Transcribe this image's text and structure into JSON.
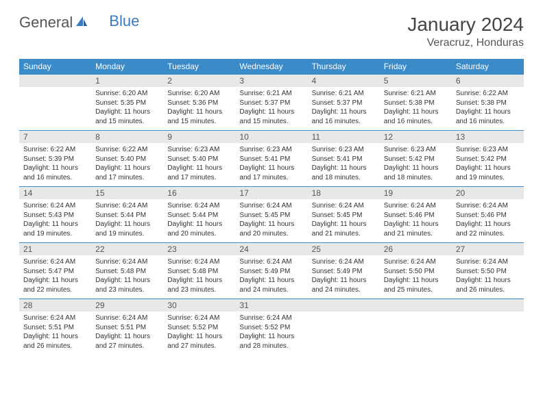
{
  "logo": {
    "part1": "General",
    "part2": "Blue"
  },
  "title": "January 2024",
  "location": "Veracruz, Honduras",
  "colors": {
    "header_bg": "#3b8bc9",
    "header_text": "#ffffff",
    "daynum_bg": "#e8e8e8",
    "daynum_text": "#555555",
    "border": "#3b8bc9",
    "body_text": "#333333",
    "logo_gray": "#555555",
    "logo_blue": "#3b7bbf"
  },
  "weekdays": [
    "Sunday",
    "Monday",
    "Tuesday",
    "Wednesday",
    "Thursday",
    "Friday",
    "Saturday"
  ],
  "weeks": [
    [
      {
        "day": "",
        "lines": []
      },
      {
        "day": "1",
        "lines": [
          "Sunrise: 6:20 AM",
          "Sunset: 5:35 PM",
          "Daylight: 11 hours and 15 minutes."
        ]
      },
      {
        "day": "2",
        "lines": [
          "Sunrise: 6:20 AM",
          "Sunset: 5:36 PM",
          "Daylight: 11 hours and 15 minutes."
        ]
      },
      {
        "day": "3",
        "lines": [
          "Sunrise: 6:21 AM",
          "Sunset: 5:37 PM",
          "Daylight: 11 hours and 15 minutes."
        ]
      },
      {
        "day": "4",
        "lines": [
          "Sunrise: 6:21 AM",
          "Sunset: 5:37 PM",
          "Daylight: 11 hours and 16 minutes."
        ]
      },
      {
        "day": "5",
        "lines": [
          "Sunrise: 6:21 AM",
          "Sunset: 5:38 PM",
          "Daylight: 11 hours and 16 minutes."
        ]
      },
      {
        "day": "6",
        "lines": [
          "Sunrise: 6:22 AM",
          "Sunset: 5:38 PM",
          "Daylight: 11 hours and 16 minutes."
        ]
      }
    ],
    [
      {
        "day": "7",
        "lines": [
          "Sunrise: 6:22 AM",
          "Sunset: 5:39 PM",
          "Daylight: 11 hours and 16 minutes."
        ]
      },
      {
        "day": "8",
        "lines": [
          "Sunrise: 6:22 AM",
          "Sunset: 5:40 PM",
          "Daylight: 11 hours and 17 minutes."
        ]
      },
      {
        "day": "9",
        "lines": [
          "Sunrise: 6:23 AM",
          "Sunset: 5:40 PM",
          "Daylight: 11 hours and 17 minutes."
        ]
      },
      {
        "day": "10",
        "lines": [
          "Sunrise: 6:23 AM",
          "Sunset: 5:41 PM",
          "Daylight: 11 hours and 17 minutes."
        ]
      },
      {
        "day": "11",
        "lines": [
          "Sunrise: 6:23 AM",
          "Sunset: 5:41 PM",
          "Daylight: 11 hours and 18 minutes."
        ]
      },
      {
        "day": "12",
        "lines": [
          "Sunrise: 6:23 AM",
          "Sunset: 5:42 PM",
          "Daylight: 11 hours and 18 minutes."
        ]
      },
      {
        "day": "13",
        "lines": [
          "Sunrise: 6:23 AM",
          "Sunset: 5:42 PM",
          "Daylight: 11 hours and 19 minutes."
        ]
      }
    ],
    [
      {
        "day": "14",
        "lines": [
          "Sunrise: 6:24 AM",
          "Sunset: 5:43 PM",
          "Daylight: 11 hours and 19 minutes."
        ]
      },
      {
        "day": "15",
        "lines": [
          "Sunrise: 6:24 AM",
          "Sunset: 5:44 PM",
          "Daylight: 11 hours and 19 minutes."
        ]
      },
      {
        "day": "16",
        "lines": [
          "Sunrise: 6:24 AM",
          "Sunset: 5:44 PM",
          "Daylight: 11 hours and 20 minutes."
        ]
      },
      {
        "day": "17",
        "lines": [
          "Sunrise: 6:24 AM",
          "Sunset: 5:45 PM",
          "Daylight: 11 hours and 20 minutes."
        ]
      },
      {
        "day": "18",
        "lines": [
          "Sunrise: 6:24 AM",
          "Sunset: 5:45 PM",
          "Daylight: 11 hours and 21 minutes."
        ]
      },
      {
        "day": "19",
        "lines": [
          "Sunrise: 6:24 AM",
          "Sunset: 5:46 PM",
          "Daylight: 11 hours and 21 minutes."
        ]
      },
      {
        "day": "20",
        "lines": [
          "Sunrise: 6:24 AM",
          "Sunset: 5:46 PM",
          "Daylight: 11 hours and 22 minutes."
        ]
      }
    ],
    [
      {
        "day": "21",
        "lines": [
          "Sunrise: 6:24 AM",
          "Sunset: 5:47 PM",
          "Daylight: 11 hours and 22 minutes."
        ]
      },
      {
        "day": "22",
        "lines": [
          "Sunrise: 6:24 AM",
          "Sunset: 5:48 PM",
          "Daylight: 11 hours and 23 minutes."
        ]
      },
      {
        "day": "23",
        "lines": [
          "Sunrise: 6:24 AM",
          "Sunset: 5:48 PM",
          "Daylight: 11 hours and 23 minutes."
        ]
      },
      {
        "day": "24",
        "lines": [
          "Sunrise: 6:24 AM",
          "Sunset: 5:49 PM",
          "Daylight: 11 hours and 24 minutes."
        ]
      },
      {
        "day": "25",
        "lines": [
          "Sunrise: 6:24 AM",
          "Sunset: 5:49 PM",
          "Daylight: 11 hours and 24 minutes."
        ]
      },
      {
        "day": "26",
        "lines": [
          "Sunrise: 6:24 AM",
          "Sunset: 5:50 PM",
          "Daylight: 11 hours and 25 minutes."
        ]
      },
      {
        "day": "27",
        "lines": [
          "Sunrise: 6:24 AM",
          "Sunset: 5:50 PM",
          "Daylight: 11 hours and 26 minutes."
        ]
      }
    ],
    [
      {
        "day": "28",
        "lines": [
          "Sunrise: 6:24 AM",
          "Sunset: 5:51 PM",
          "Daylight: 11 hours and 26 minutes."
        ]
      },
      {
        "day": "29",
        "lines": [
          "Sunrise: 6:24 AM",
          "Sunset: 5:51 PM",
          "Daylight: 11 hours and 27 minutes."
        ]
      },
      {
        "day": "30",
        "lines": [
          "Sunrise: 6:24 AM",
          "Sunset: 5:52 PM",
          "Daylight: 11 hours and 27 minutes."
        ]
      },
      {
        "day": "31",
        "lines": [
          "Sunrise: 6:24 AM",
          "Sunset: 5:52 PM",
          "Daylight: 11 hours and 28 minutes."
        ]
      },
      {
        "day": "",
        "lines": []
      },
      {
        "day": "",
        "lines": []
      },
      {
        "day": "",
        "lines": []
      }
    ]
  ]
}
